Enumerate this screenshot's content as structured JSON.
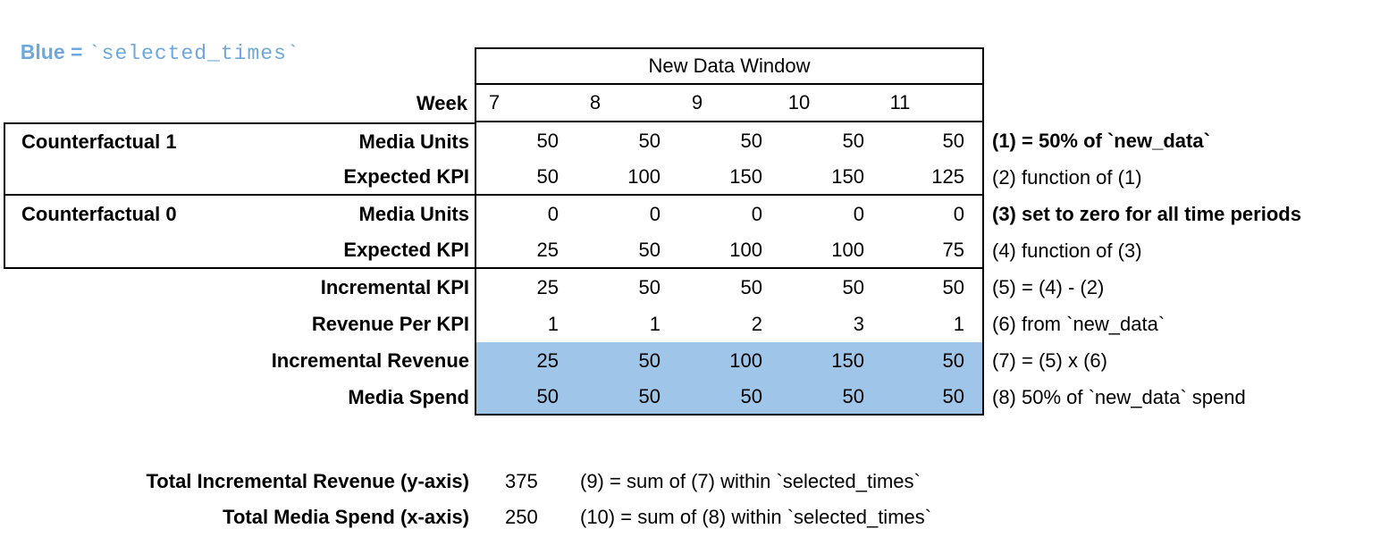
{
  "colors": {
    "highlight": "#9FC5E8",
    "legend_text": "#6FA8DC"
  },
  "legend": {
    "prefix": "Blue = ",
    "code": "`selected_times`"
  },
  "table": {
    "window_header": "New Data Window",
    "week_label": "Week",
    "week_numbers": [
      "7",
      "8",
      "9",
      "10",
      "11"
    ],
    "rows": [
      {
        "section": "Counterfactual 1",
        "label": "Media Units",
        "values": [
          "50",
          "50",
          "50",
          "50",
          "50"
        ],
        "annotation": "(1) = 50% of `new_data`",
        "annotation_bold": true,
        "highlight": false
      },
      {
        "section": "",
        "label": "Expected KPI",
        "values": [
          "50",
          "100",
          "150",
          "150",
          "125"
        ],
        "annotation": "(2) function of (1)",
        "annotation_bold": false,
        "highlight": false
      },
      {
        "section": "Counterfactual 0",
        "label": "Media Units",
        "values": [
          "0",
          "0",
          "0",
          "0",
          "0"
        ],
        "annotation": "(3) set to zero for all time periods",
        "annotation_bold": true,
        "highlight": false
      },
      {
        "section": "",
        "label": "Expected KPI",
        "values": [
          "25",
          "50",
          "100",
          "100",
          "75"
        ],
        "annotation": "(4) function of (3)",
        "annotation_bold": false,
        "highlight": false
      },
      {
        "section": "",
        "label": "Incremental KPI",
        "values": [
          "25",
          "50",
          "50",
          "50",
          "50"
        ],
        "annotation": "(5) = (4) - (2)",
        "annotation_bold": false,
        "highlight": false
      },
      {
        "section": "",
        "label": "Revenue Per KPI",
        "values": [
          "1",
          "1",
          "2",
          "3",
          "1"
        ],
        "annotation": "(6) from `new_data`",
        "annotation_bold": false,
        "highlight": false
      },
      {
        "section": "",
        "label": "Incremental Revenue",
        "values": [
          "25",
          "50",
          "100",
          "150",
          "50"
        ],
        "annotation": "(7) = (5) x (6)",
        "annotation_bold": false,
        "highlight": true
      },
      {
        "section": "",
        "label": "Media Spend",
        "values": [
          "50",
          "50",
          "50",
          "50",
          "50"
        ],
        "annotation": "(8) 50% of `new_data` spend",
        "annotation_bold": false,
        "highlight": true
      }
    ]
  },
  "totals": [
    {
      "label": "Total Incremental Revenue (y-axis)",
      "value": "375",
      "annotation": "(9) = sum of (7) within `selected_times`"
    },
    {
      "label": "Total Media Spend (x-axis)",
      "value": "250",
      "annotation": "(10) = sum of (8) within `selected_times`"
    }
  ]
}
